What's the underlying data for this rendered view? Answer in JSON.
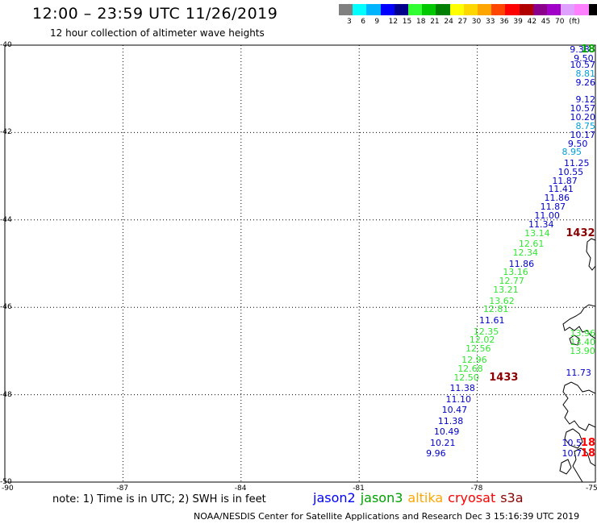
{
  "header": {
    "title": "12:00 – 23:59 UTC 11/26/2019",
    "subtitle": "12 hour collection of altimeter wave heights"
  },
  "colorbar": {
    "colors": [
      "#808080",
      "#00ffff",
      "#00b4ff",
      "#0000ff",
      "#00008b",
      "#32ff32",
      "#00c800",
      "#008000",
      "#ffff00",
      "#ffd700",
      "#ffa500",
      "#ff4500",
      "#ff0000",
      "#b00000",
      "#8b008b",
      "#a000c8",
      "#e0a0ff",
      "#ff80ff",
      "#000000"
    ],
    "ticks": [
      "3",
      "6",
      "9",
      "12",
      "15",
      "18",
      "21",
      "24",
      "27",
      "30",
      "33",
      "36",
      "39",
      "42",
      "45",
      "70",
      "(ft)"
    ]
  },
  "map": {
    "lat_labels": [
      "-40",
      "-42",
      "-44",
      "-46",
      "-48",
      "-50"
    ],
    "lon_labels": [
      "-90",
      "-87",
      "-84",
      "-81",
      "-78",
      "-75"
    ],
    "extent": {
      "lon_min": -90,
      "lon_max": -75,
      "lat_min": -50,
      "lat_max": -40
    },
    "labels": [
      {
        "t": "9.38",
        "lon": -75.65,
        "lat": -40.0,
        "c": "#0000cc"
      },
      {
        "t": "18",
        "lon": -75.3,
        "lat": -40.0,
        "c": "#00a000",
        "big": true
      },
      {
        "t": "9.50",
        "lon": -75.55,
        "lat": -40.2,
        "c": "#0000cc"
      },
      {
        "t": "10.57",
        "lon": -75.45,
        "lat": -40.35,
        "c": "#0000cc"
      },
      {
        "t": "8.81",
        "lon": -75.35,
        "lat": -40.55,
        "c": "#00a0dc"
      },
      {
        "t": "9.26",
        "lon": -75.25,
        "lat": -40.75,
        "c": "#0000cc"
      },
      {
        "t": "9.12",
        "lon": -75.2,
        "lat": -41.15,
        "c": "#0000cc"
      },
      {
        "t": "10.57",
        "lon": -75.25,
        "lat": -41.35,
        "c": "#0000cc"
      },
      {
        "t": "10.20",
        "lon": -75.35,
        "lat": -41.55,
        "c": "#0000cc"
      },
      {
        "t": "8.75",
        "lon": -75.45,
        "lat": -41.75,
        "c": "#00a0dc"
      },
      {
        "t": "10.17",
        "lon": -75.55,
        "lat": -41.95,
        "c": "#0000cc"
      },
      {
        "t": "9.50",
        "lon": -75.7,
        "lat": -42.15,
        "c": "#0000cc"
      },
      {
        "t": "8.95",
        "lon": -75.85,
        "lat": -42.35,
        "c": "#00a0dc"
      },
      {
        "t": "11.25",
        "lon": -75.8,
        "lat": -42.6,
        "c": "#0000cc"
      },
      {
        "t": "10.55",
        "lon": -75.95,
        "lat": -42.8,
        "c": "#0000cc"
      },
      {
        "t": "11.87",
        "lon": -76.1,
        "lat": -43.0,
        "c": "#0000cc"
      },
      {
        "t": "11.41",
        "lon": -76.2,
        "lat": -43.2,
        "c": "#0000cc"
      },
      {
        "t": "11.86",
        "lon": -76.3,
        "lat": -43.4,
        "c": "#0000cc"
      },
      {
        "t": "11.87",
        "lon": -76.4,
        "lat": -43.6,
        "c": "#0000cc"
      },
      {
        "t": "11.00",
        "lon": -76.55,
        "lat": -43.8,
        "c": "#0000cc"
      },
      {
        "t": "11.34",
        "lon": -76.7,
        "lat": -44.0,
        "c": "#0000cc"
      },
      {
        "t": "13.14",
        "lon": -76.8,
        "lat": -44.2,
        "c": "#32e632"
      },
      {
        "t": "1432",
        "lon": -75.75,
        "lat": -44.2,
        "c": "#8b0000",
        "big": true
      },
      {
        "t": "12.61",
        "lon": -76.95,
        "lat": -44.45,
        "c": "#32e632"
      },
      {
        "t": "12.34",
        "lon": -77.1,
        "lat": -44.65,
        "c": "#32e632"
      },
      {
        "t": "11.86",
        "lon": -77.2,
        "lat": -44.9,
        "c": "#0000cc"
      },
      {
        "t": "13.16",
        "lon": -77.35,
        "lat": -45.1,
        "c": "#32e632"
      },
      {
        "t": "12.77",
        "lon": -77.45,
        "lat": -45.3,
        "c": "#32e632"
      },
      {
        "t": "13.21",
        "lon": -77.6,
        "lat": -45.5,
        "c": "#32e632"
      },
      {
        "t": "13.62",
        "lon": -77.7,
        "lat": -45.75,
        "c": "#32e632"
      },
      {
        "t": "12.81",
        "lon": -77.85,
        "lat": -45.95,
        "c": "#32e632"
      },
      {
        "t": "11.61",
        "lon": -77.95,
        "lat": -46.2,
        "c": "#0000cc"
      },
      {
        "t": "12.35",
        "lon": -78.1,
        "lat": -46.45,
        "c": "#32e632"
      },
      {
        "t": "12.02",
        "lon": -78.2,
        "lat": -46.65,
        "c": "#32e632"
      },
      {
        "t": "12.56",
        "lon": -78.3,
        "lat": -46.85,
        "c": "#32e632"
      },
      {
        "t": "12.96",
        "lon": -78.4,
        "lat": -47.1,
        "c": "#32e632"
      },
      {
        "t": "12.68",
        "lon": -78.5,
        "lat": -47.3,
        "c": "#32e632"
      },
      {
        "t": "12.50",
        "lon": -78.6,
        "lat": -47.5,
        "c": "#32e632"
      },
      {
        "t": "1433",
        "lon": -77.7,
        "lat": -47.5,
        "c": "#8b0000",
        "big": true
      },
      {
        "t": "11.38",
        "lon": -78.7,
        "lat": -47.75,
        "c": "#0000cc"
      },
      {
        "t": "11.10",
        "lon": -78.8,
        "lat": -48.0,
        "c": "#0000cc"
      },
      {
        "t": "10.47",
        "lon": -78.9,
        "lat": -48.25,
        "c": "#0000cc"
      },
      {
        "t": "11.38",
        "lon": -79.0,
        "lat": -48.5,
        "c": "#0000cc"
      },
      {
        "t": "10.49",
        "lon": -79.1,
        "lat": -48.75,
        "c": "#0000cc"
      },
      {
        "t": "10.21",
        "lon": -79.2,
        "lat": -49.0,
        "c": "#0000cc"
      },
      {
        "t": "9.96",
        "lon": -79.3,
        "lat": -49.25,
        "c": "#0000cc"
      },
      {
        "t": "13.96",
        "lon": -75.55,
        "lat": -46.5,
        "c": "#32e632"
      },
      {
        "t": "13.40",
        "lon": -75.6,
        "lat": -46.7,
        "c": "#32e632"
      },
      {
        "t": "13.90",
        "lon": -75.65,
        "lat": -46.9,
        "c": "#32e632"
      },
      {
        "t": "11.73",
        "lon": -75.75,
        "lat": -47.4,
        "c": "#0000cc"
      },
      {
        "t": "10.5",
        "lon": -75.85,
        "lat": -49.0,
        "c": "#0000cc"
      },
      {
        "t": "10.7",
        "lon": -75.85,
        "lat": -49.25,
        "c": "#0000cc"
      },
      {
        "t": "18",
        "lon": -75.05,
        "lat": -49.0,
        "c": "#ff0000",
        "big": true
      },
      {
        "t": "18",
        "lon": -75.05,
        "lat": -49.25,
        "c": "#ff0000",
        "big": true
      }
    ]
  },
  "note": "note: 1) Time is in UTC; 2) SWH is in feet",
  "legend": [
    {
      "label": "jason2",
      "color": "#0000ff"
    },
    {
      "label": "jason3",
      "color": "#00a000"
    },
    {
      "label": "altika",
      "color": "#ffa500"
    },
    {
      "label": "cryosat",
      "color": "#ff0000"
    },
    {
      "label": "s3a",
      "color": "#8b0000"
    }
  ],
  "footer": "NOAA/NESDIS Center for Satellite Applications and Research    Dec  3 15:16:39 UTC 2019"
}
